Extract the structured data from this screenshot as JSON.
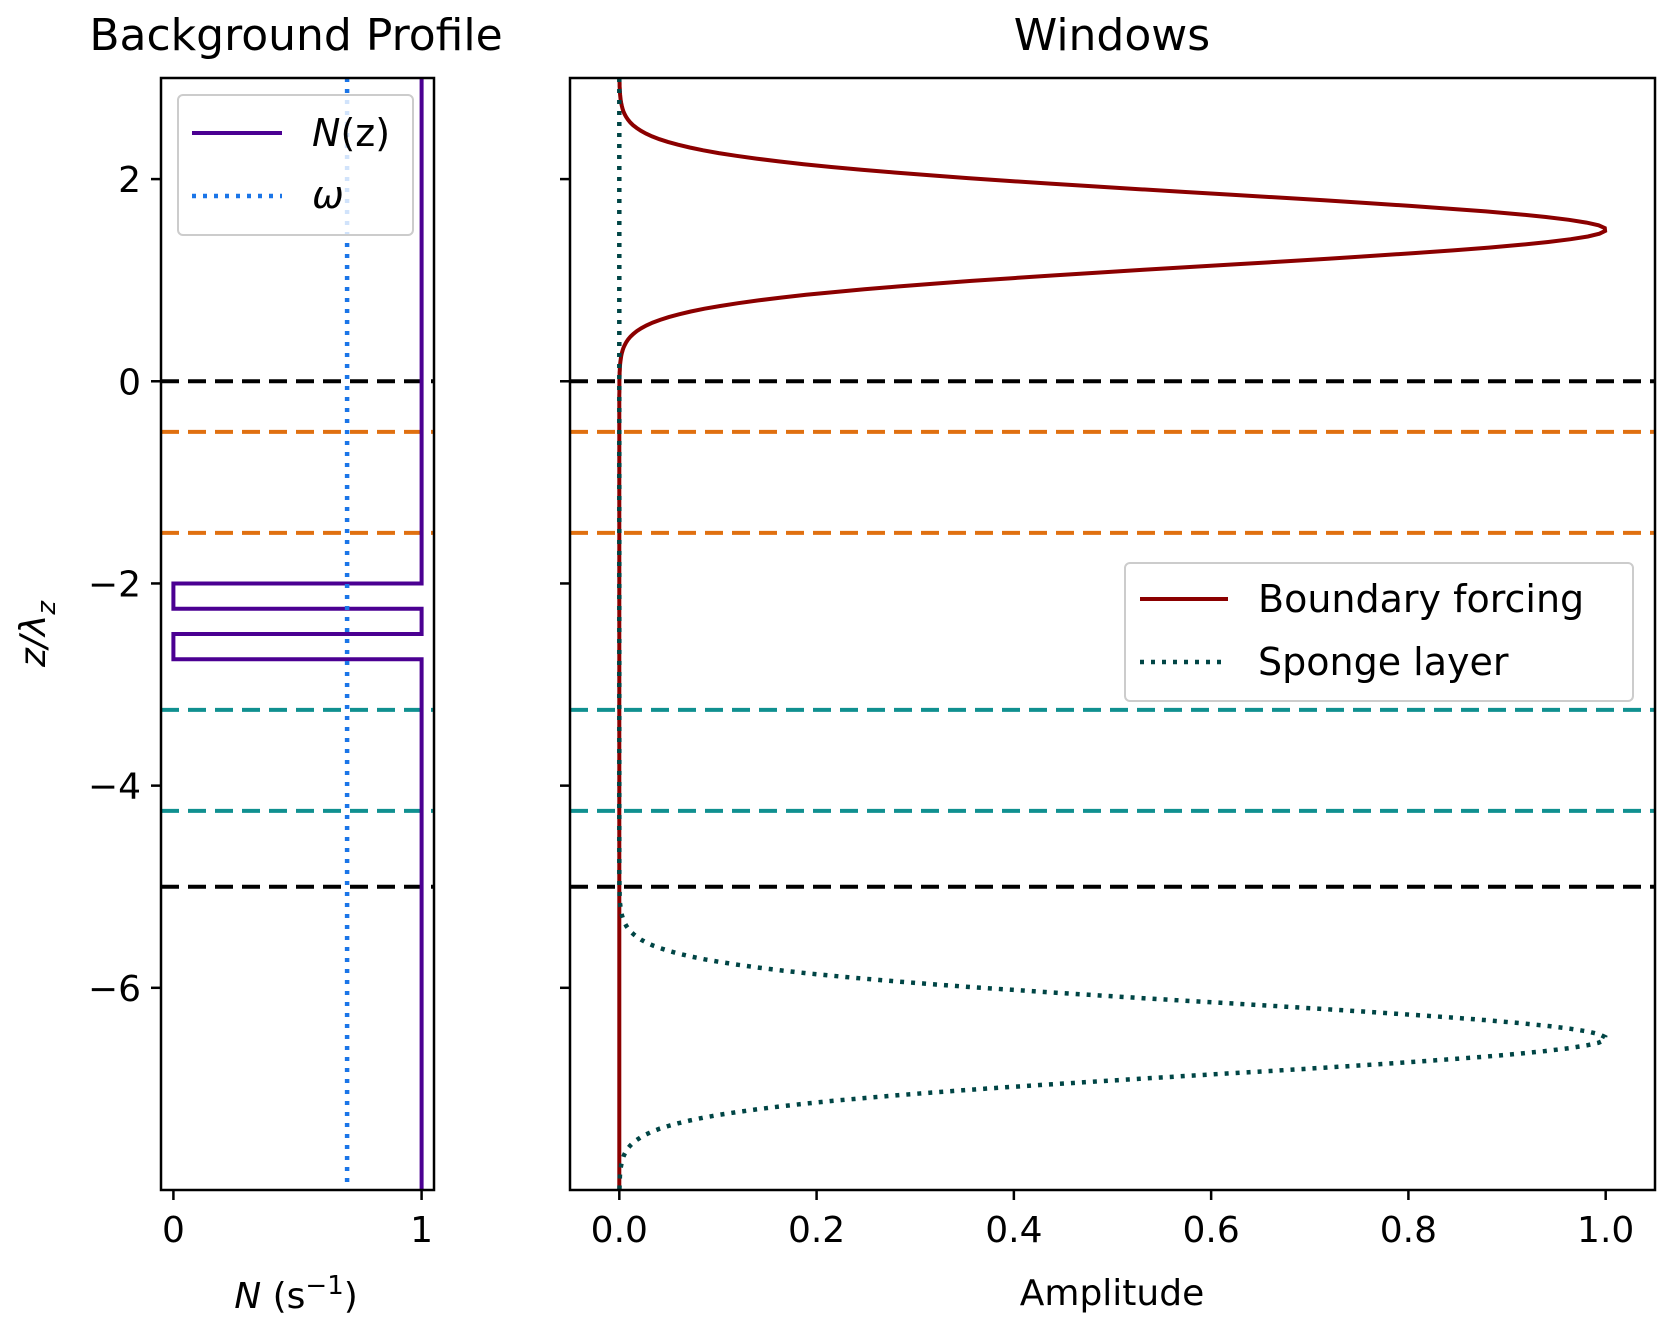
{
  "chart_data": [
    {
      "type": "line",
      "title": "Background Profile",
      "xlabel": "N (s⁻¹)",
      "ylabel": "z/λ_z",
      "xlim": [
        -0.05,
        1.05
      ],
      "ylim": [
        -8.0,
        3.0
      ],
      "xticks": [
        0,
        1
      ],
      "xtick_labels": [
        "0",
        "1"
      ],
      "yticks": [
        2,
        0,
        -2,
        -4,
        -6
      ],
      "ytick_labels": [
        "2",
        "0",
        "−2",
        "−4",
        "−6"
      ],
      "grid": false,
      "legend_position": "upper left",
      "series": [
        {
          "name": "N(z)",
          "color": "#4b0092",
          "style": "solid",
          "points": [
            [
              1,
              3.0
            ],
            [
              1,
              -2.0
            ],
            [
              0,
              -2.0
            ],
            [
              0,
              -2.25
            ],
            [
              1,
              -2.25
            ],
            [
              1,
              -2.5
            ],
            [
              0,
              -2.5
            ],
            [
              0,
              -2.75
            ],
            [
              1,
              -2.75
            ],
            [
              1,
              -8.0
            ]
          ]
        },
        {
          "name": "ω",
          "color": "#1a75e8",
          "style": "dotted",
          "points": [
            [
              0.7,
              3.0
            ],
            [
              0.7,
              -8.0
            ]
          ]
        }
      ],
      "hlines": [
        {
          "y": 0.0,
          "color": "#000000"
        },
        {
          "y": -0.5,
          "color": "#e07010"
        },
        {
          "y": -1.5,
          "color": "#e07010"
        },
        {
          "y": -3.25,
          "color": "#109090"
        },
        {
          "y": -4.25,
          "color": "#109090"
        },
        {
          "y": -5.0,
          "color": "#000000"
        }
      ]
    },
    {
      "type": "line",
      "title": "Windows",
      "xlabel": "Amplitude",
      "ylabel": "",
      "xlim": [
        -0.05,
        1.05
      ],
      "ylim": [
        -8.0,
        3.0
      ],
      "xticks": [
        0.0,
        0.2,
        0.4,
        0.6,
        0.8,
        1.0
      ],
      "xtick_labels": [
        "0.0",
        "0.2",
        "0.4",
        "0.6",
        "0.8",
        "1.0"
      ],
      "yticks": [
        2,
        0,
        -2,
        -4,
        -6
      ],
      "grid": false,
      "legend_position": "center right",
      "series": [
        {
          "name": "Boundary forcing",
          "color": "#8b0000",
          "style": "solid",
          "shape": "gaussian",
          "center": 1.5,
          "width": 0.5,
          "peak": 1.0
        },
        {
          "name": "Sponge layer",
          "color": "#004545",
          "style": "dotted",
          "shape": "gaussian",
          "center": -6.5,
          "width": 0.5,
          "peak": 1.0
        }
      ],
      "hlines": [
        {
          "y": 0.0,
          "color": "#000000"
        },
        {
          "y": -0.5,
          "color": "#e07010"
        },
        {
          "y": -1.5,
          "color": "#e07010"
        },
        {
          "y": -3.25,
          "color": "#109090"
        },
        {
          "y": -4.25,
          "color": "#109090"
        },
        {
          "y": -5.0,
          "color": "#000000"
        }
      ]
    }
  ],
  "legend_left": {
    "n_prefix": "N",
    "n_paren": "(z)",
    "omega": "ω"
  },
  "axis_text": {
    "left_xlabel_N": "N",
    "left_xlabel_units": " (s",
    "left_xlabel_exp": "−1",
    "left_xlabel_close": ")",
    "ylabel_z": "z/λ",
    "ylabel_sub": "z"
  }
}
